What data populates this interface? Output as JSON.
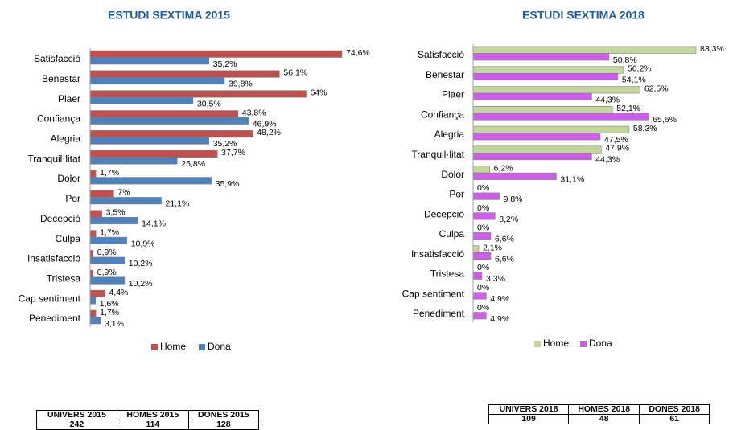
{
  "chart_data": [
    {
      "type": "bar",
      "orientation": "horizontal",
      "title": "ESTUDI SEXTIMA 2015",
      "categories": [
        "Satisfacció",
        "Benestar",
        "Plaer",
        "Confiança",
        "Alegria",
        "Tranquil·litat",
        "Dolor",
        "Por",
        "Decepció",
        "Culpa",
        "Insatisfacció",
        "Tristesa",
        "Cap sentiment",
        "Penediment"
      ],
      "series": [
        {
          "name": "Home",
          "color": "#c0504d",
          "values": [
            74.6,
            56.1,
            64,
            43.8,
            48.2,
            37.7,
            1.7,
            7,
            3.5,
            1.7,
            0.9,
            0.9,
            4.4,
            1.7
          ],
          "value_labels": [
            "74,6%",
            "56,1%",
            "64%",
            "43,8%",
            "48,2%",
            "37,7%",
            "1,7%",
            "7%",
            "3,5%",
            "1,7%",
            "0,9%",
            "0,9%",
            "4,4%",
            "1,7%"
          ]
        },
        {
          "name": "Dona",
          "color": "#4f81bd",
          "values": [
            35.2,
            39.8,
            30.5,
            46.9,
            35.2,
            25.8,
            35.9,
            21.1,
            14.1,
            10.9,
            10.2,
            10.2,
            1.6,
            3.1
          ],
          "value_labels": [
            "35,2%",
            "39,8%",
            "30,5%",
            "46,9%",
            "35,2%",
            "25,8%",
            "35,9%",
            "21,1%",
            "14,1%",
            "10,9%",
            "10,2%",
            "10,2%",
            "1,6%",
            "3,1%"
          ]
        }
      ],
      "legend": "bottom"
    },
    {
      "type": "bar",
      "orientation": "horizontal",
      "title": "ESTUDI SEXTIMA 2018",
      "categories": [
        "Satisfacció",
        "Benestar",
        "Plaer",
        "Confiança",
        "Alegria",
        "Tranquil·litat",
        "Dolor",
        "Por",
        "Decepció",
        "Culpa",
        "Insatisfacció",
        "Tristesa",
        "Cap sentiment",
        "Penediment"
      ],
      "series": [
        {
          "name": "Home",
          "color": "#c3d69b",
          "values": [
            83.3,
            56.2,
            62.5,
            52.1,
            58.3,
            47.9,
            6.2,
            0,
            0,
            0,
            2.1,
            0,
            0,
            0
          ],
          "value_labels": [
            "83,3%",
            "56,2%",
            "62,5%",
            "52,1%",
            "58,3%",
            "47,9%",
            "6,2%",
            "0%",
            "0%",
            "0%",
            "2,1%",
            "0%",
            "0%",
            "0%"
          ]
        },
        {
          "name": "Dona",
          "color": "#cc5ee8",
          "values": [
            50.8,
            54.1,
            44.3,
            65.6,
            47.5,
            44.3,
            31.1,
            9.8,
            8.2,
            6.6,
            6.6,
            3.3,
            4.9,
            4.9
          ],
          "value_labels": [
            "50,8%",
            "54,1%",
            "44,3%",
            "65,6%",
            "47,5%",
            "44,3%",
            "31,1%",
            "9,8%",
            "8,2%",
            "6,6%",
            "6,6%",
            "3,3%",
            "4,9%",
            "4,9%"
          ]
        }
      ],
      "legend": "bottom"
    }
  ],
  "tables": [
    {
      "header": [
        "UNIVERS 2015",
        "HOMES 2015",
        "DONES 2015"
      ],
      "rows": [
        [
          242,
          114,
          128
        ]
      ]
    },
    {
      "header": [
        "UNIVERS 2018",
        "HOMES 2018",
        "DONES 2018"
      ],
      "rows": [
        [
          109,
          48,
          61
        ]
      ]
    }
  ]
}
